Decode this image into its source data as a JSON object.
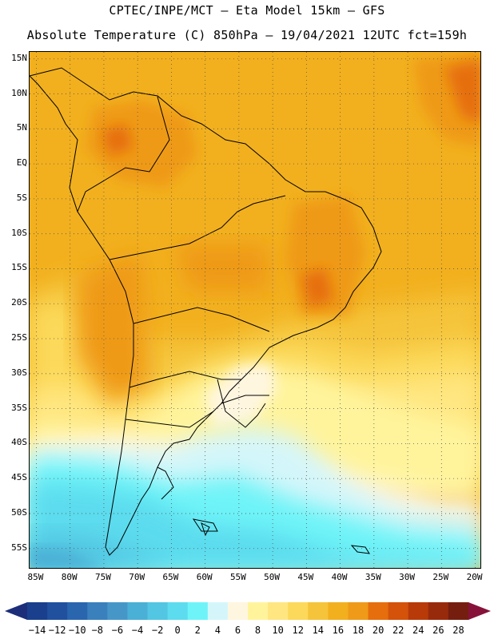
{
  "header": {
    "line1": "CPTEC/INPE/MCT –  Eta Model 15km – GFS",
    "line2": "Absolute Temperature (C) 850hPa – 19/04/2021 12UTC fct=159h"
  },
  "map": {
    "lon_range": [
      -86,
      -19
    ],
    "lat_range": [
      -58,
      16
    ],
    "lat_ticks": [
      {
        "value": 15,
        "label": "15N"
      },
      {
        "value": 10,
        "label": "10N"
      },
      {
        "value": 5,
        "label": "5N"
      },
      {
        "value": 0,
        "label": "EQ"
      },
      {
        "value": -5,
        "label": "5S"
      },
      {
        "value": -10,
        "label": "10S"
      },
      {
        "value": -15,
        "label": "15S"
      },
      {
        "value": -20,
        "label": "20S"
      },
      {
        "value": -25,
        "label": "25S"
      },
      {
        "value": -30,
        "label": "30S"
      },
      {
        "value": -35,
        "label": "35S"
      },
      {
        "value": -40,
        "label": "40S"
      },
      {
        "value": -45,
        "label": "45S"
      },
      {
        "value": -50,
        "label": "50S"
      },
      {
        "value": -55,
        "label": "55S"
      }
    ],
    "lon_ticks": [
      {
        "value": -85,
        "label": "85W"
      },
      {
        "value": -80,
        "label": "80W"
      },
      {
        "value": -75,
        "label": "75W"
      },
      {
        "value": -70,
        "label": "70W"
      },
      {
        "value": -65,
        "label": "65W"
      },
      {
        "value": -60,
        "label": "60W"
      },
      {
        "value": -55,
        "label": "55W"
      },
      {
        "value": -50,
        "label": "50W"
      },
      {
        "value": -45,
        "label": "45W"
      },
      {
        "value": -40,
        "label": "40W"
      },
      {
        "value": -35,
        "label": "35W"
      },
      {
        "value": -30,
        "label": "30W"
      },
      {
        "value": -25,
        "label": "25W"
      },
      {
        "value": -20,
        "label": "20W"
      }
    ]
  },
  "colorbar": {
    "labels": [
      "-14",
      "-12",
      "-10",
      "-8",
      "-6",
      "-4",
      "-2",
      "0",
      "2",
      "4",
      "6",
      "8",
      "10",
      "12",
      "14",
      "16",
      "18",
      "20",
      "22",
      "24",
      "26",
      "28"
    ],
    "colors": [
      "#1a3f8c",
      "#21509e",
      "#2a66ae",
      "#3a80bd",
      "#4697c8",
      "#4bb0d6",
      "#52c6e2",
      "#5cdcee",
      "#6ef4f8",
      "#d4f6fa",
      "#fff6e0",
      "#fff49c",
      "#ffe680",
      "#fcd95a",
      "#f5c43a",
      "#f2b01e",
      "#ef9a18",
      "#e66e0c",
      "#d4520a",
      "#b83a08",
      "#982a0c",
      "#751e10"
    ],
    "under_color": "#1c2e7a",
    "over_color": "#86123a"
  }
}
